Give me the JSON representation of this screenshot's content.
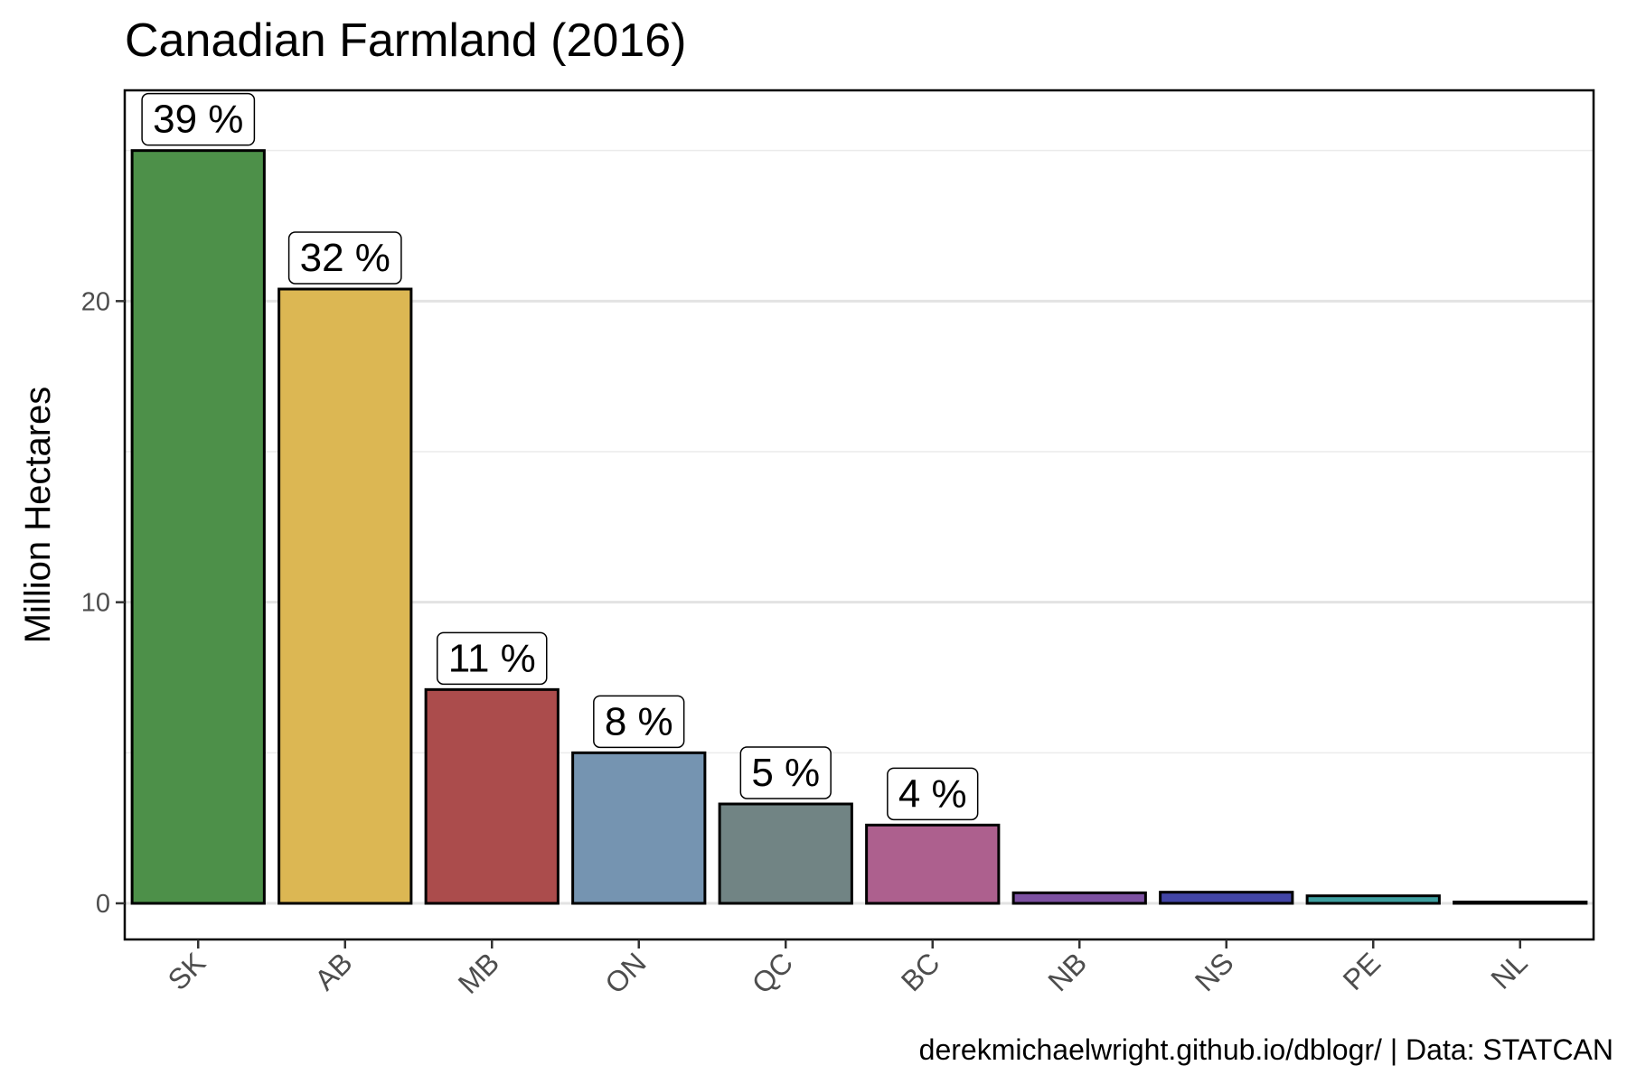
{
  "chart_data": {
    "type": "bar",
    "title": "Canadian Farmland (2016)",
    "ylabel": "Million Hectares",
    "xlabel": "",
    "caption": "derekmichaelwright.github.io/dblogr/ | Data: STATCAN",
    "ylim": [
      -1.2,
      27.0
    ],
    "yticks": [
      0,
      10,
      20
    ],
    "grid": true,
    "legend": "none",
    "categories": [
      "SK",
      "AB",
      "MB",
      "ON",
      "QC",
      "BC",
      "NB",
      "NS",
      "PE",
      "NL"
    ],
    "values": [
      25.0,
      20.4,
      7.1,
      5.0,
      3.3,
      2.6,
      0.35,
      0.37,
      0.25,
      0.03
    ],
    "labels": [
      "39 %",
      "32 %",
      "11 %",
      "8 %",
      "5 %",
      "4 %",
      "",
      "",
      "",
      ""
    ],
    "colors": [
      "#4d9049",
      "#dcb753",
      "#ab4c4c",
      "#7594b1",
      "#718484",
      "#ad608e",
      "#7c50a1",
      "#4245a6",
      "#3e9fa0",
      "#3d3d99"
    ]
  }
}
